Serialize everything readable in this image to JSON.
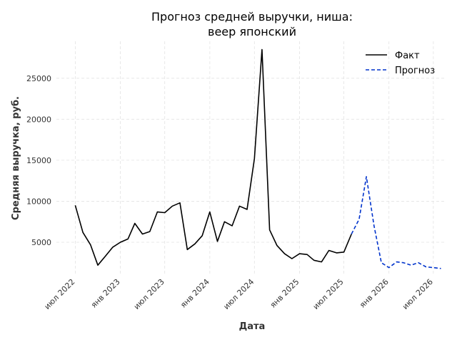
{
  "chart_data": {
    "type": "line",
    "title_lines": [
      "Прогноз средней выручки, ниша:",
      "веер японский"
    ],
    "xlabel": "Дата",
    "ylabel": "Средняя выручка, руб.",
    "ylim": [
      1000,
      29500
    ],
    "xlim": [
      "2022-04-15",
      "2026-08-20"
    ],
    "grid": true,
    "legend_position": "top-right",
    "x_ticks": [
      {
        "date": "2022-07-01",
        "label": "июл 2022"
      },
      {
        "date": "2023-01-01",
        "label": "янв 2023"
      },
      {
        "date": "2023-07-01",
        "label": "июл 2023"
      },
      {
        "date": "2024-01-01",
        "label": "янв 2024"
      },
      {
        "date": "2024-07-01",
        "label": "июл 2024"
      },
      {
        "date": "2025-01-01",
        "label": "янв 2025"
      },
      {
        "date": "2025-07-01",
        "label": "июл 2025"
      },
      {
        "date": "2026-01-01",
        "label": "янв 2026"
      },
      {
        "date": "2026-07-01",
        "label": "июл 2026"
      }
    ],
    "y_ticks": [
      {
        "value": 5000,
        "label": "5000"
      },
      {
        "value": 10000,
        "label": "10000"
      },
      {
        "value": 15000,
        "label": "15000"
      },
      {
        "value": 20000,
        "label": "20000"
      },
      {
        "value": 25000,
        "label": "25000"
      }
    ],
    "series": [
      {
        "name": "Факт",
        "color": "#000000",
        "dash": "solid",
        "points": [
          [
            "2022-07-01",
            9500
          ],
          [
            "2022-08-01",
            6200
          ],
          [
            "2022-09-01",
            4700
          ],
          [
            "2022-10-01",
            2200
          ],
          [
            "2022-11-01",
            3300
          ],
          [
            "2022-12-01",
            4400
          ],
          [
            "2023-01-01",
            5000
          ],
          [
            "2023-02-01",
            5400
          ],
          [
            "2023-03-01",
            7300
          ],
          [
            "2023-04-01",
            6000
          ],
          [
            "2023-05-01",
            6300
          ],
          [
            "2023-06-01",
            8700
          ],
          [
            "2023-07-01",
            8600
          ],
          [
            "2023-08-01",
            9400
          ],
          [
            "2023-09-01",
            9800
          ],
          [
            "2023-10-01",
            4100
          ],
          [
            "2023-11-01",
            4800
          ],
          [
            "2023-12-01",
            5800
          ],
          [
            "2024-01-01",
            8700
          ],
          [
            "2024-02-01",
            5100
          ],
          [
            "2024-03-01",
            7500
          ],
          [
            "2024-04-01",
            7000
          ],
          [
            "2024-05-01",
            9400
          ],
          [
            "2024-06-01",
            9000
          ],
          [
            "2024-07-01",
            15200
          ],
          [
            "2024-08-01",
            28500
          ],
          [
            "2024-09-01",
            6500
          ],
          [
            "2024-10-01",
            4600
          ],
          [
            "2024-11-01",
            3600
          ],
          [
            "2024-12-01",
            3000
          ],
          [
            "2025-01-01",
            3600
          ],
          [
            "2025-02-01",
            3500
          ],
          [
            "2025-03-01",
            2800
          ],
          [
            "2025-04-01",
            2600
          ],
          [
            "2025-05-01",
            4000
          ],
          [
            "2025-06-01",
            3700
          ],
          [
            "2025-07-01",
            3800
          ],
          [
            "2025-08-01",
            6000
          ]
        ]
      },
      {
        "name": "Прогноз",
        "color": "#0033cc",
        "dash": "dashed",
        "points": [
          [
            "2025-08-01",
            6000
          ],
          [
            "2025-09-01",
            7800
          ],
          [
            "2025-10-01",
            13000
          ],
          [
            "2025-11-01",
            7000
          ],
          [
            "2025-12-01",
            2500
          ],
          [
            "2026-01-01",
            1900
          ],
          [
            "2026-02-01",
            2600
          ],
          [
            "2026-03-01",
            2500
          ],
          [
            "2026-04-01",
            2200
          ],
          [
            "2026-05-01",
            2500
          ],
          [
            "2026-06-01",
            2000
          ],
          [
            "2026-07-01",
            1900
          ],
          [
            "2026-08-01",
            1800
          ]
        ]
      }
    ]
  }
}
